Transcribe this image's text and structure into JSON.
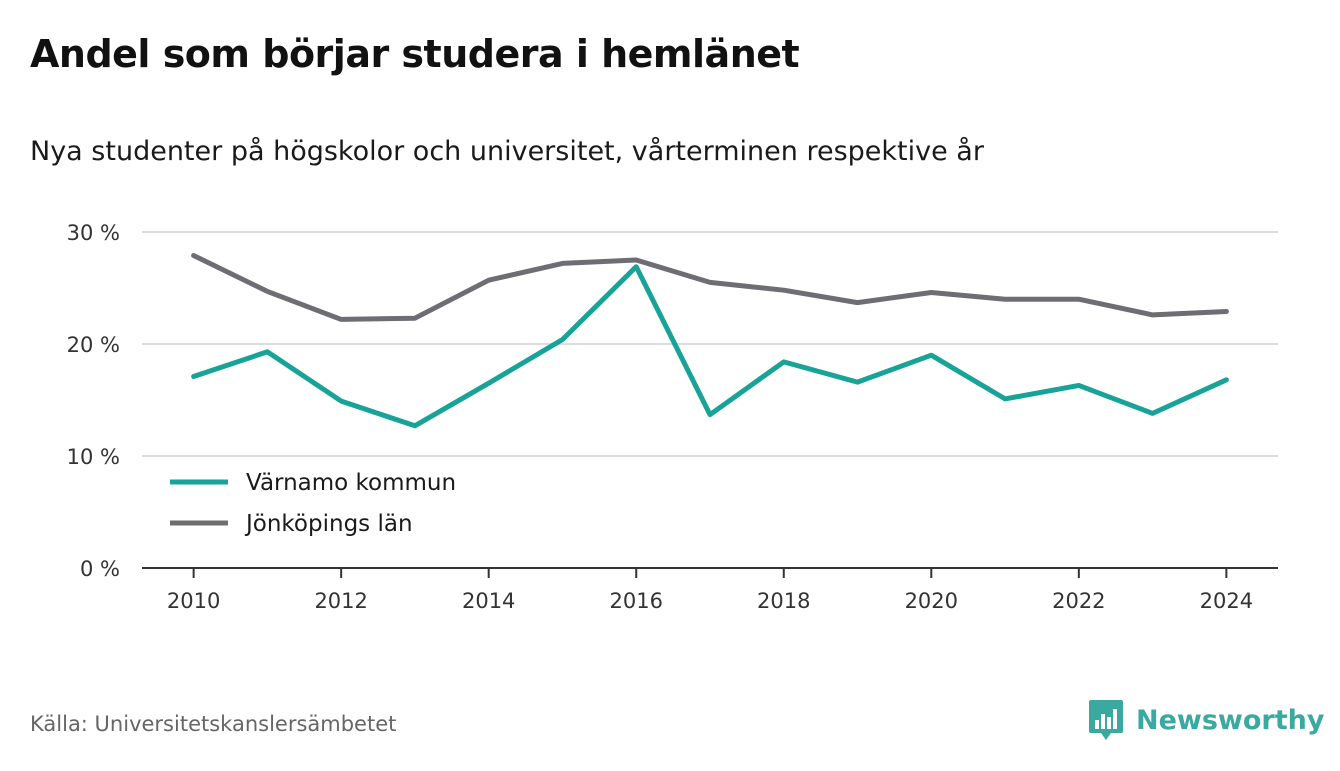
{
  "header": {
    "title": "Andel som börjar studera i hemlänet",
    "subtitle": "Nya studenter på högskolor och universitet, vårterminen respektive år"
  },
  "footer": {
    "source": "Källa: Universitetskanslersämbetet",
    "brand": "Newsworthy",
    "brand_icon": "bar-chart-speech-bubble-icon"
  },
  "colors": {
    "varnamo": "#17a398",
    "jonkoping": "#6e6d74",
    "grid": "#dcdcdc",
    "axis": "#333333",
    "brand": "#3aa9a0"
  },
  "chart_data": {
    "type": "line",
    "title": "Andel som börjar studera i hemlänet",
    "subtitle": "Nya studenter på högskolor och universitet, vårterminen respektive år",
    "x": [
      2010,
      2011,
      2012,
      2013,
      2014,
      2015,
      2016,
      2017,
      2018,
      2019,
      2020,
      2021,
      2022,
      2023,
      2024
    ],
    "xticks": [
      "2010",
      "2012",
      "2014",
      "2016",
      "2018",
      "2020",
      "2022",
      "2024"
    ],
    "xlim": [
      2009.3,
      2024.7
    ],
    "ylim": [
      0,
      30
    ],
    "yticks": [
      "0 %",
      "10 %",
      "20 %",
      "30 %"
    ],
    "ytick_values": [
      0,
      10,
      20,
      30
    ],
    "grid": true,
    "legend_position": "lower-left",
    "series": [
      {
        "name": "Värnamo kommun",
        "color": "#17a398",
        "values": [
          17.1,
          19.3,
          14.9,
          12.7,
          16.5,
          20.4,
          26.9,
          13.7,
          18.4,
          16.6,
          19.0,
          15.1,
          16.3,
          13.8,
          16.8
        ]
      },
      {
        "name": "Jönköpings län",
        "color": "#6e6d74",
        "values": [
          27.9,
          24.7,
          22.2,
          22.3,
          25.7,
          27.2,
          27.5,
          25.5,
          24.8,
          23.7,
          24.6,
          24.0,
          24.0,
          22.6,
          22.9
        ]
      }
    ]
  }
}
